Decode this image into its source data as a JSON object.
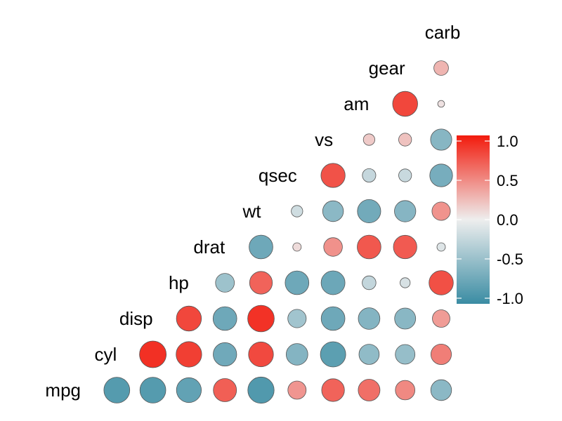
{
  "chart_data": {
    "type": "heatmap",
    "variables": [
      "mpg",
      "cyl",
      "disp",
      "hp",
      "drat",
      "wt",
      "qsec",
      "vs",
      "am",
      "gear",
      "carb"
    ],
    "matrix": [
      [
        1.0,
        -0.85,
        -0.85,
        -0.78,
        0.68,
        -0.87,
        0.42,
        0.66,
        0.6,
        0.48,
        -0.55
      ],
      [
        -0.85,
        1.0,
        0.9,
        0.83,
        -0.7,
        0.78,
        -0.59,
        -0.81,
        -0.52,
        -0.49,
        0.53
      ],
      [
        -0.85,
        0.9,
        1.0,
        0.79,
        -0.71,
        0.89,
        -0.43,
        -0.71,
        -0.59,
        -0.56,
        0.39
      ],
      [
        -0.78,
        0.83,
        0.79,
        1.0,
        -0.45,
        0.66,
        -0.71,
        -0.72,
        -0.24,
        -0.13,
        0.75
      ],
      [
        0.68,
        -0.7,
        -0.71,
        -0.45,
        1.0,
        -0.71,
        0.09,
        0.44,
        0.71,
        0.7,
        -0.09
      ],
      [
        -0.87,
        0.78,
        0.89,
        0.66,
        -0.71,
        1.0,
        -0.17,
        -0.55,
        -0.69,
        -0.58,
        0.43
      ],
      [
        0.42,
        -0.59,
        -0.43,
        -0.71,
        0.09,
        -0.17,
        1.0,
        0.74,
        -0.23,
        -0.21,
        -0.66
      ],
      [
        0.66,
        -0.81,
        -0.71,
        -0.72,
        0.44,
        -0.55,
        0.74,
        1.0,
        0.17,
        0.21,
        -0.57
      ],
      [
        0.6,
        -0.52,
        -0.59,
        -0.24,
        0.71,
        -0.69,
        -0.23,
        0.17,
        1.0,
        0.79,
        0.06
      ],
      [
        0.48,
        -0.49,
        -0.56,
        -0.13,
        0.7,
        -0.58,
        -0.21,
        0.21,
        0.79,
        1.0,
        0.27
      ],
      [
        -0.55,
        0.53,
        0.39,
        0.75,
        -0.09,
        0.43,
        -0.66,
        -0.57,
        0.06,
        0.27,
        1.0
      ]
    ],
    "legend": {
      "range": [
        -1.0,
        1.0
      ],
      "tick_labels": [
        "1.0",
        "0.5",
        "0.0",
        "-0.5",
        "-1.0"
      ],
      "tick_values": [
        1.0,
        0.5,
        0.0,
        -0.5,
        -1.0
      ],
      "placement": "right"
    },
    "colors": {
      "low": "#3A8CA3",
      "mid": "#EEEEEE",
      "high": "#F21B0D"
    },
    "layout": "lower-triangle",
    "shape": "circle",
    "size_encodes": "absolute correlation",
    "grid": false,
    "title": "",
    "xlabel": "",
    "ylabel": ""
  }
}
